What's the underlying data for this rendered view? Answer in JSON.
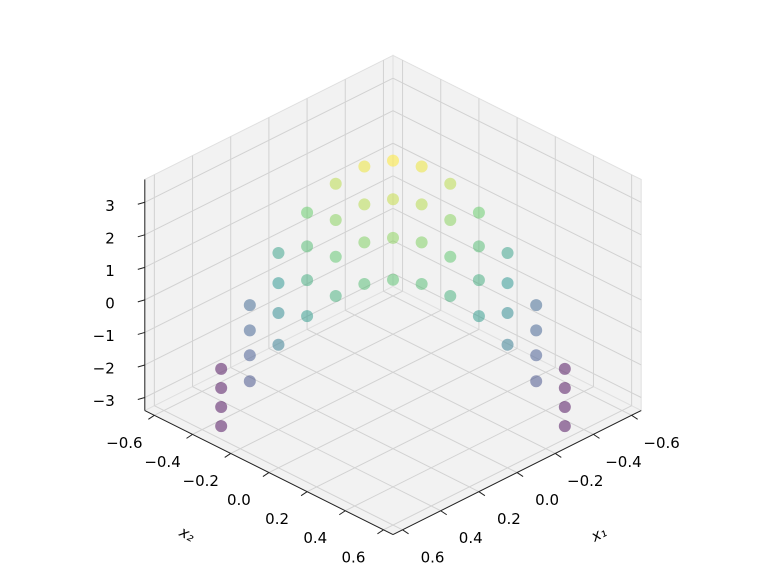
{
  "chart_data": {
    "type": "scatter3d",
    "x": [
      -0.3,
      -0.225,
      -0.15,
      -0.075,
      0,
      0.075,
      0.15,
      0.225,
      0.3,
      0.375,
      0.45,
      0.525,
      0.6,
      -0.4,
      -0.325,
      -0.25,
      -0.175,
      -0.1,
      -0.025,
      0.05,
      0.125,
      0.2,
      0.275,
      0.35,
      0.425,
      0.5,
      -0.5,
      -0.425,
      -0.35,
      -0.275,
      -0.2,
      -0.125,
      -0.05,
      0.025,
      0.1,
      0.175,
      0.25,
      0.325,
      0.4,
      -0.6,
      -0.525,
      -0.45,
      -0.375,
      -0.3,
      -0.225,
      -0.15,
      -0.075,
      0,
      0.075,
      0.15,
      0.225,
      0.3
    ],
    "y": [
      0.6,
      0.525,
      0.45,
      0.375,
      0.3,
      0.225,
      0.15,
      0.075,
      0,
      -0.075,
      -0.15,
      -0.225,
      -0.3,
      0.5,
      0.425,
      0.35,
      0.275,
      0.2,
      0.125,
      0.05,
      -0.025,
      -0.1,
      -0.175,
      -0.25,
      -0.325,
      -0.4,
      0.4,
      0.325,
      0.25,
      0.175,
      0.1,
      0.025,
      -0.05,
      -0.125,
      -0.2,
      -0.275,
      -0.35,
      -0.425,
      -0.5,
      0.3,
      0.225,
      0.15,
      0.075,
      0,
      -0.075,
      -0.15,
      -0.225,
      -0.3,
      -0.375,
      -0.45,
      -0.525,
      -0.6
    ],
    "z": [
      -3,
      -1.62,
      -0.5,
      0.38,
      1.0,
      1.37,
      1.5,
      1.37,
      1.0,
      0.38,
      -0.5,
      -1.62,
      -3,
      -3,
      -1.41,
      -0.11,
      0.9,
      1.62,
      2.06,
      2.2,
      2.06,
      1.62,
      0.9,
      -0.11,
      -1.41,
      -3,
      -3,
      -1.23,
      0.22,
      1.35,
      2.16,
      2.64,
      2.8,
      2.64,
      2.16,
      1.35,
      0.22,
      -1.23,
      -3,
      -3,
      -1.04,
      0.56,
      1.8,
      2.69,
      3.22,
      3.4,
      3.22,
      2.69,
      1.8,
      0.56,
      -1.04,
      -3
    ],
    "xlabel": "x₁",
    "ylabel": "x₂",
    "xlim": [
      -0.65,
      0.65
    ],
    "ylim": [
      -0.65,
      0.65
    ],
    "zlim": [
      -3.4,
      3.7
    ],
    "xticks": [
      {
        "value": -0.6,
        "label": "−0.6"
      },
      {
        "value": -0.4,
        "label": "−0.4"
      },
      {
        "value": -0.2,
        "label": "−0.2"
      },
      {
        "value": 0,
        "label": "0.0"
      },
      {
        "value": 0.2,
        "label": "0.2"
      },
      {
        "value": 0.4,
        "label": "0.4"
      },
      {
        "value": 0.6,
        "label": "0.6"
      }
    ],
    "yticks": [
      {
        "value": -0.6,
        "label": "−0.6"
      },
      {
        "value": -0.4,
        "label": "−0.4"
      },
      {
        "value": -0.2,
        "label": "−0.2"
      },
      {
        "value": 0,
        "label": "0.0"
      },
      {
        "value": 0.2,
        "label": "0.2"
      },
      {
        "value": 0.4,
        "label": "0.4"
      },
      {
        "value": 0.6,
        "label": "0.6"
      }
    ],
    "zticks": [
      {
        "value": -3,
        "label": "−3"
      },
      {
        "value": -2,
        "label": "−2"
      },
      {
        "value": -1,
        "label": "−1"
      },
      0,
      1,
      2,
      3
    ],
    "colormap": "viridis",
    "alpha": 0.5,
    "grid": true
  }
}
